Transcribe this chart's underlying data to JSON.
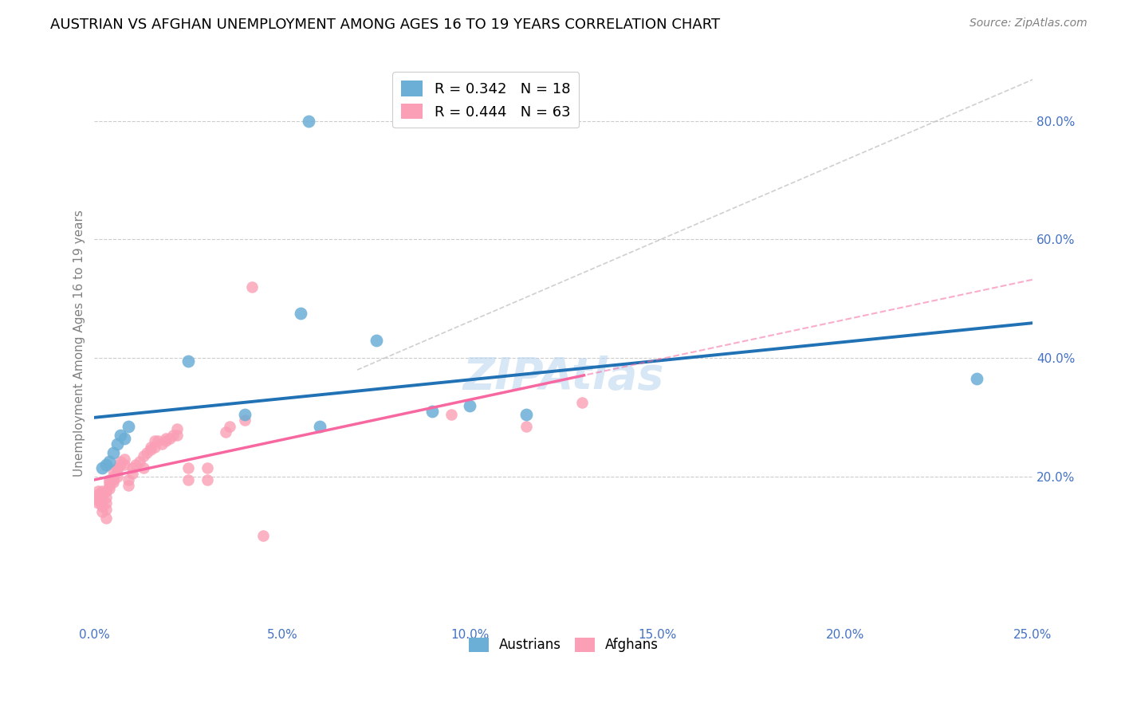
{
  "title": "AUSTRIAN VS AFGHAN UNEMPLOYMENT AMONG AGES 16 TO 19 YEARS CORRELATION CHART",
  "source": "Source: ZipAtlas.com",
  "ylabel": "Unemployment Among Ages 16 to 19 years",
  "xlim": [
    0.0,
    0.25
  ],
  "ylim": [
    -0.05,
    0.9
  ],
  "xtick_labels": [
    "0.0%",
    "5.0%",
    "10.0%",
    "15.0%",
    "20.0%",
    "25.0%"
  ],
  "xtick_vals": [
    0.0,
    0.05,
    0.1,
    0.15,
    0.2,
    0.25
  ],
  "ytick_labels": [
    "20.0%",
    "40.0%",
    "60.0%",
    "80.0%"
  ],
  "ytick_vals": [
    0.2,
    0.4,
    0.6,
    0.8
  ],
  "watermark": "ZIPAtlas",
  "austrian_color": "#6baed6",
  "afghan_color": "#fa9fb5",
  "austrian_line_color": "#2171b5",
  "afghan_line_color": "#f768a1",
  "diagonal_color": "#bbbbbb",
  "austrians_x": [
    0.002,
    0.003,
    0.004,
    0.005,
    0.006,
    0.007,
    0.008,
    0.009,
    0.025,
    0.04,
    0.055,
    0.057,
    0.06,
    0.075,
    0.09,
    0.1,
    0.115,
    0.235
  ],
  "austrians_y": [
    0.215,
    0.22,
    0.225,
    0.24,
    0.255,
    0.27,
    0.265,
    0.285,
    0.395,
    0.305,
    0.475,
    0.8,
    0.285,
    0.43,
    0.31,
    0.32,
    0.305,
    0.365
  ],
  "afghans_x": [
    0.001,
    0.001,
    0.001,
    0.001,
    0.001,
    0.002,
    0.002,
    0.002,
    0.002,
    0.002,
    0.003,
    0.003,
    0.003,
    0.003,
    0.003,
    0.004,
    0.004,
    0.004,
    0.004,
    0.005,
    0.005,
    0.005,
    0.005,
    0.006,
    0.006,
    0.006,
    0.007,
    0.007,
    0.008,
    0.008,
    0.009,
    0.009,
    0.01,
    0.01,
    0.011,
    0.012,
    0.013,
    0.013,
    0.014,
    0.015,
    0.015,
    0.016,
    0.016,
    0.017,
    0.018,
    0.019,
    0.019,
    0.02,
    0.021,
    0.022,
    0.022,
    0.025,
    0.025,
    0.03,
    0.03,
    0.035,
    0.036,
    0.04,
    0.042,
    0.045,
    0.095,
    0.115,
    0.13
  ],
  "afghans_y": [
    0.155,
    0.16,
    0.165,
    0.17,
    0.175,
    0.14,
    0.15,
    0.155,
    0.165,
    0.175,
    0.13,
    0.145,
    0.155,
    0.165,
    0.175,
    0.18,
    0.185,
    0.19,
    0.195,
    0.19,
    0.195,
    0.2,
    0.21,
    0.2,
    0.21,
    0.215,
    0.22,
    0.225,
    0.22,
    0.23,
    0.185,
    0.195,
    0.205,
    0.215,
    0.22,
    0.225,
    0.215,
    0.235,
    0.24,
    0.245,
    0.25,
    0.25,
    0.26,
    0.26,
    0.255,
    0.26,
    0.265,
    0.265,
    0.27,
    0.27,
    0.28,
    0.195,
    0.215,
    0.195,
    0.215,
    0.275,
    0.285,
    0.295,
    0.52,
    0.1,
    0.305,
    0.285,
    0.325
  ],
  "title_fontsize": 13,
  "axis_label_fontsize": 11,
  "tick_fontsize": 11,
  "source_fontsize": 10,
  "watermark_fontsize": 40
}
